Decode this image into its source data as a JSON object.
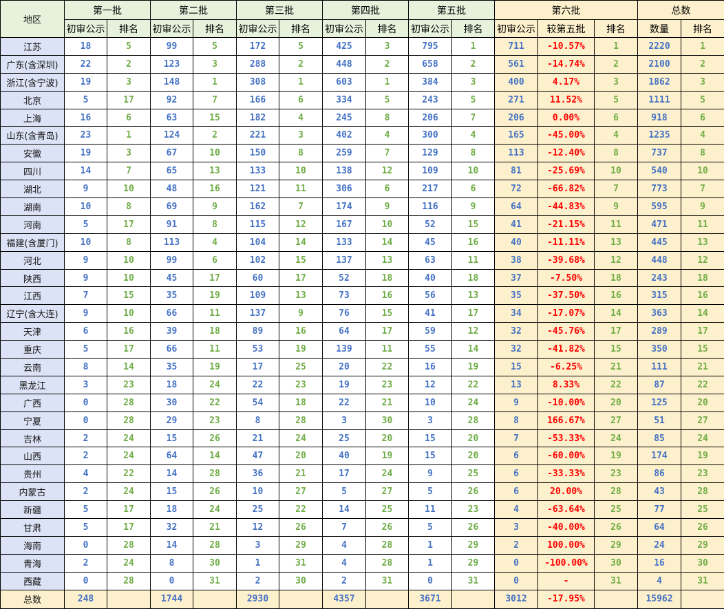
{
  "colors": {
    "header_green": "#E6F2DC",
    "region_lavender": "#DDE3F6",
    "highlight_cream": "#FDF0CC",
    "value_blue": "#4472C4",
    "rank_green": "#70AD47",
    "diff_red": "#FF0000",
    "border": "#000000"
  },
  "table": {
    "header": {
      "region": "地区",
      "batch_labels": [
        "第一批",
        "第二批",
        "第三批",
        "第四批",
        "第五批"
      ],
      "value_label": "初审公示",
      "rank_label": "排名",
      "batch6_label": "第六批",
      "batch6_diff_label": "较第五批",
      "total_label": "总数",
      "qty_label": "数量"
    },
    "rows": [
      {
        "region": "江苏",
        "values": [
          "18",
          "5",
          "99",
          "5",
          "172",
          "5",
          "425",
          "3",
          "795",
          "1",
          "711",
          "-10.57%",
          "1",
          "2220",
          "1"
        ]
      },
      {
        "region": "广东(含深圳)",
        "values": [
          "22",
          "2",
          "123",
          "3",
          "288",
          "2",
          "448",
          "2",
          "658",
          "2",
          "561",
          "-14.74%",
          "2",
          "2100",
          "2"
        ]
      },
      {
        "region": "浙江(含宁波)",
        "values": [
          "19",
          "3",
          "148",
          "1",
          "308",
          "1",
          "603",
          "1",
          "384",
          "3",
          "400",
          "4.17%",
          "3",
          "1862",
          "3"
        ]
      },
      {
        "region": "北京",
        "values": [
          "5",
          "17",
          "92",
          "7",
          "166",
          "6",
          "334",
          "5",
          "243",
          "5",
          "271",
          "11.52%",
          "5",
          "1111",
          "5"
        ]
      },
      {
        "region": "上海",
        "values": [
          "16",
          "6",
          "63",
          "15",
          "182",
          "4",
          "245",
          "8",
          "206",
          "7",
          "206",
          "0.00%",
          "6",
          "918",
          "6"
        ]
      },
      {
        "region": "山东(含青岛)",
        "values": [
          "23",
          "1",
          "124",
          "2",
          "221",
          "3",
          "402",
          "4",
          "300",
          "4",
          "165",
          "-45.00%",
          "4",
          "1235",
          "4"
        ]
      },
      {
        "region": "安徽",
        "values": [
          "19",
          "3",
          "67",
          "10",
          "150",
          "8",
          "259",
          "7",
          "129",
          "8",
          "113",
          "-12.40%",
          "8",
          "737",
          "8"
        ]
      },
      {
        "region": "四川",
        "values": [
          "14",
          "7",
          "65",
          "13",
          "133",
          "10",
          "138",
          "12",
          "109",
          "10",
          "81",
          "-25.69%",
          "10",
          "540",
          "10"
        ]
      },
      {
        "region": "湖北",
        "values": [
          "9",
          "10",
          "48",
          "16",
          "121",
          "11",
          "306",
          "6",
          "217",
          "6",
          "72",
          "-66.82%",
          "7",
          "773",
          "7"
        ]
      },
      {
        "region": "湖南",
        "values": [
          "10",
          "8",
          "69",
          "9",
          "162",
          "7",
          "174",
          "9",
          "116",
          "9",
          "64",
          "-44.83%",
          "9",
          "595",
          "9"
        ]
      },
      {
        "region": "河南",
        "values": [
          "5",
          "17",
          "91",
          "8",
          "115",
          "12",
          "167",
          "10",
          "52",
          "15",
          "41",
          "-21.15%",
          "11",
          "471",
          "11"
        ]
      },
      {
        "region": "福建(含厦门)",
        "values": [
          "10",
          "8",
          "113",
          "4",
          "104",
          "14",
          "133",
          "14",
          "45",
          "16",
          "40",
          "-11.11%",
          "13",
          "445",
          "13"
        ]
      },
      {
        "region": "河北",
        "values": [
          "9",
          "10",
          "99",
          "6",
          "102",
          "15",
          "137",
          "13",
          "63",
          "11",
          "38",
          "-39.68%",
          "12",
          "448",
          "12"
        ]
      },
      {
        "region": "陕西",
        "values": [
          "9",
          "10",
          "45",
          "17",
          "60",
          "17",
          "52",
          "18",
          "40",
          "18",
          "37",
          "-7.50%",
          "18",
          "243",
          "18"
        ]
      },
      {
        "region": "江西",
        "values": [
          "7",
          "15",
          "35",
          "19",
          "109",
          "13",
          "73",
          "16",
          "56",
          "13",
          "35",
          "-37.50%",
          "16",
          "315",
          "16"
        ]
      },
      {
        "region": "辽宁(含大连)",
        "values": [
          "9",
          "10",
          "66",
          "11",
          "137",
          "9",
          "76",
          "15",
          "41",
          "17",
          "34",
          "-17.07%",
          "14",
          "363",
          "14"
        ]
      },
      {
        "region": "天津",
        "values": [
          "6",
          "16",
          "39",
          "18",
          "89",
          "16",
          "64",
          "17",
          "59",
          "12",
          "32",
          "-45.76%",
          "17",
          "289",
          "17"
        ]
      },
      {
        "region": "重庆",
        "values": [
          "5",
          "17",
          "66",
          "11",
          "53",
          "19",
          "139",
          "11",
          "55",
          "14",
          "32",
          "-41.82%",
          "15",
          "350",
          "15"
        ]
      },
      {
        "region": "云南",
        "values": [
          "8",
          "14",
          "35",
          "19",
          "17",
          "25",
          "20",
          "22",
          "16",
          "19",
          "15",
          "-6.25%",
          "21",
          "111",
          "21"
        ]
      },
      {
        "region": "黑龙江",
        "values": [
          "3",
          "23",
          "18",
          "24",
          "22",
          "23",
          "19",
          "23",
          "12",
          "22",
          "13",
          "8.33%",
          "22",
          "87",
          "22"
        ]
      },
      {
        "region": "广西",
        "values": [
          "0",
          "28",
          "30",
          "22",
          "54",
          "18",
          "22",
          "21",
          "10",
          "24",
          "9",
          "-10.00%",
          "20",
          "125",
          "20"
        ]
      },
      {
        "region": "宁夏",
        "values": [
          "0",
          "28",
          "29",
          "23",
          "8",
          "28",
          "3",
          "30",
          "3",
          "28",
          "8",
          "166.67%",
          "27",
          "51",
          "27"
        ]
      },
      {
        "region": "吉林",
        "values": [
          "2",
          "24",
          "15",
          "26",
          "21",
          "24",
          "25",
          "20",
          "15",
          "20",
          "7",
          "-53.33%",
          "24",
          "85",
          "24"
        ]
      },
      {
        "region": "山西",
        "values": [
          "2",
          "24",
          "64",
          "14",
          "47",
          "20",
          "40",
          "19",
          "15",
          "20",
          "6",
          "-60.00%",
          "19",
          "174",
          "19"
        ]
      },
      {
        "region": "贵州",
        "values": [
          "4",
          "22",
          "14",
          "28",
          "36",
          "21",
          "17",
          "24",
          "9",
          "25",
          "6",
          "-33.33%",
          "23",
          "86",
          "23"
        ]
      },
      {
        "region": "内蒙古",
        "values": [
          "2",
          "24",
          "15",
          "26",
          "10",
          "27",
          "5",
          "27",
          "5",
          "26",
          "6",
          "20.00%",
          "28",
          "43",
          "28"
        ]
      },
      {
        "region": "新疆",
        "values": [
          "5",
          "17",
          "18",
          "24",
          "25",
          "22",
          "14",
          "25",
          "11",
          "23",
          "4",
          "-63.64%",
          "25",
          "77",
          "25"
        ]
      },
      {
        "region": "甘肃",
        "values": [
          "5",
          "17",
          "32",
          "21",
          "12",
          "26",
          "7",
          "26",
          "5",
          "26",
          "3",
          "-40.00%",
          "26",
          "64",
          "26"
        ]
      },
      {
        "region": "海南",
        "values": [
          "0",
          "28",
          "14",
          "28",
          "3",
          "29",
          "4",
          "28",
          "1",
          "29",
          "2",
          "100.00%",
          "29",
          "24",
          "29"
        ]
      },
      {
        "region": "青海",
        "values": [
          "2",
          "24",
          "8",
          "30",
          "1",
          "31",
          "4",
          "28",
          "1",
          "29",
          "0",
          "-100.00%",
          "30",
          "16",
          "30"
        ]
      },
      {
        "region": "西藏",
        "values": [
          "0",
          "28",
          "0",
          "31",
          "2",
          "30",
          "2",
          "31",
          "0",
          "31",
          "0",
          "-",
          "31",
          "4",
          "31"
        ]
      }
    ],
    "footer_row": {
      "region": "总数",
      "values": [
        "248",
        "",
        "1744",
        "",
        "2930",
        "",
        "4357",
        "",
        "3671",
        "",
        "3012",
        "-17.95%",
        "",
        "15962",
        ""
      ]
    }
  }
}
